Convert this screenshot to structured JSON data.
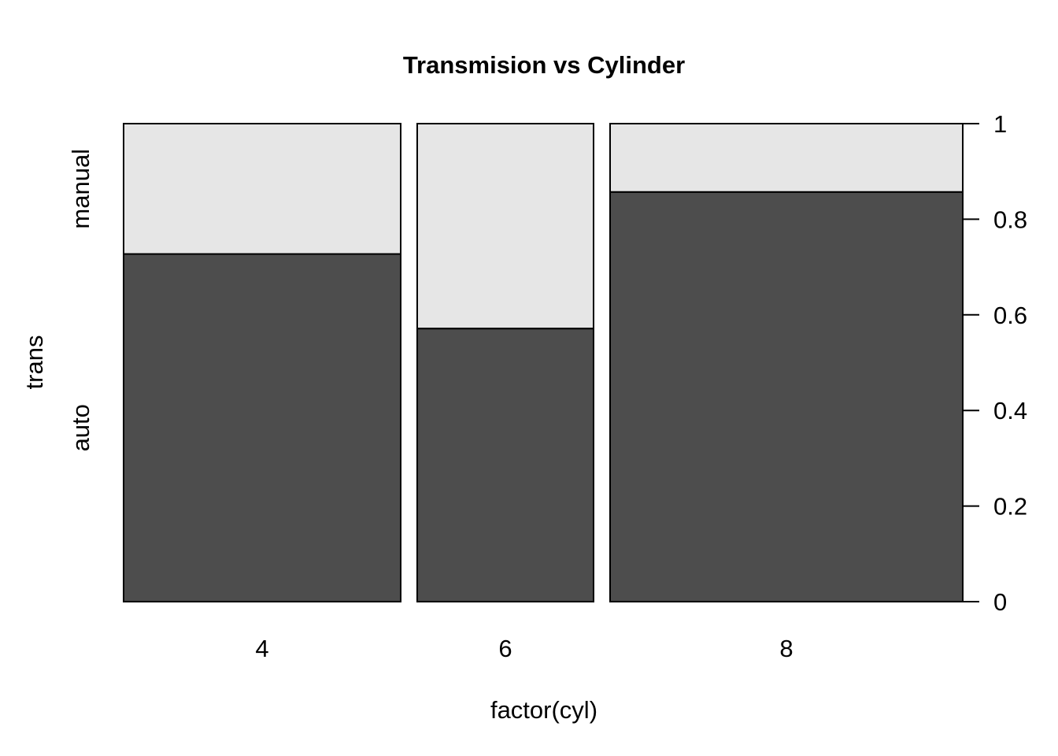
{
  "chart_data": {
    "type": "spineplot",
    "title": "Transmision vs Cylinder",
    "xlabel": "factor(cyl)",
    "ylabel": "trans",
    "categories": [
      "4",
      "6",
      "8"
    ],
    "category_widths": [
      11,
      7,
      14
    ],
    "levels": [
      "auto",
      "manual"
    ],
    "series": [
      {
        "name": "auto",
        "color": "#4d4d4d",
        "values": [
          0.7273,
          0.5714,
          0.8571
        ]
      },
      {
        "name": "manual",
        "color": "#e6e6e6",
        "values": [
          0.2727,
          0.4286,
          0.1429
        ]
      }
    ],
    "right_axis_ticks": [
      "0",
      "0.2",
      "0.4",
      "0.6",
      "0.8",
      "1"
    ],
    "ylim": [
      0,
      1
    ]
  }
}
